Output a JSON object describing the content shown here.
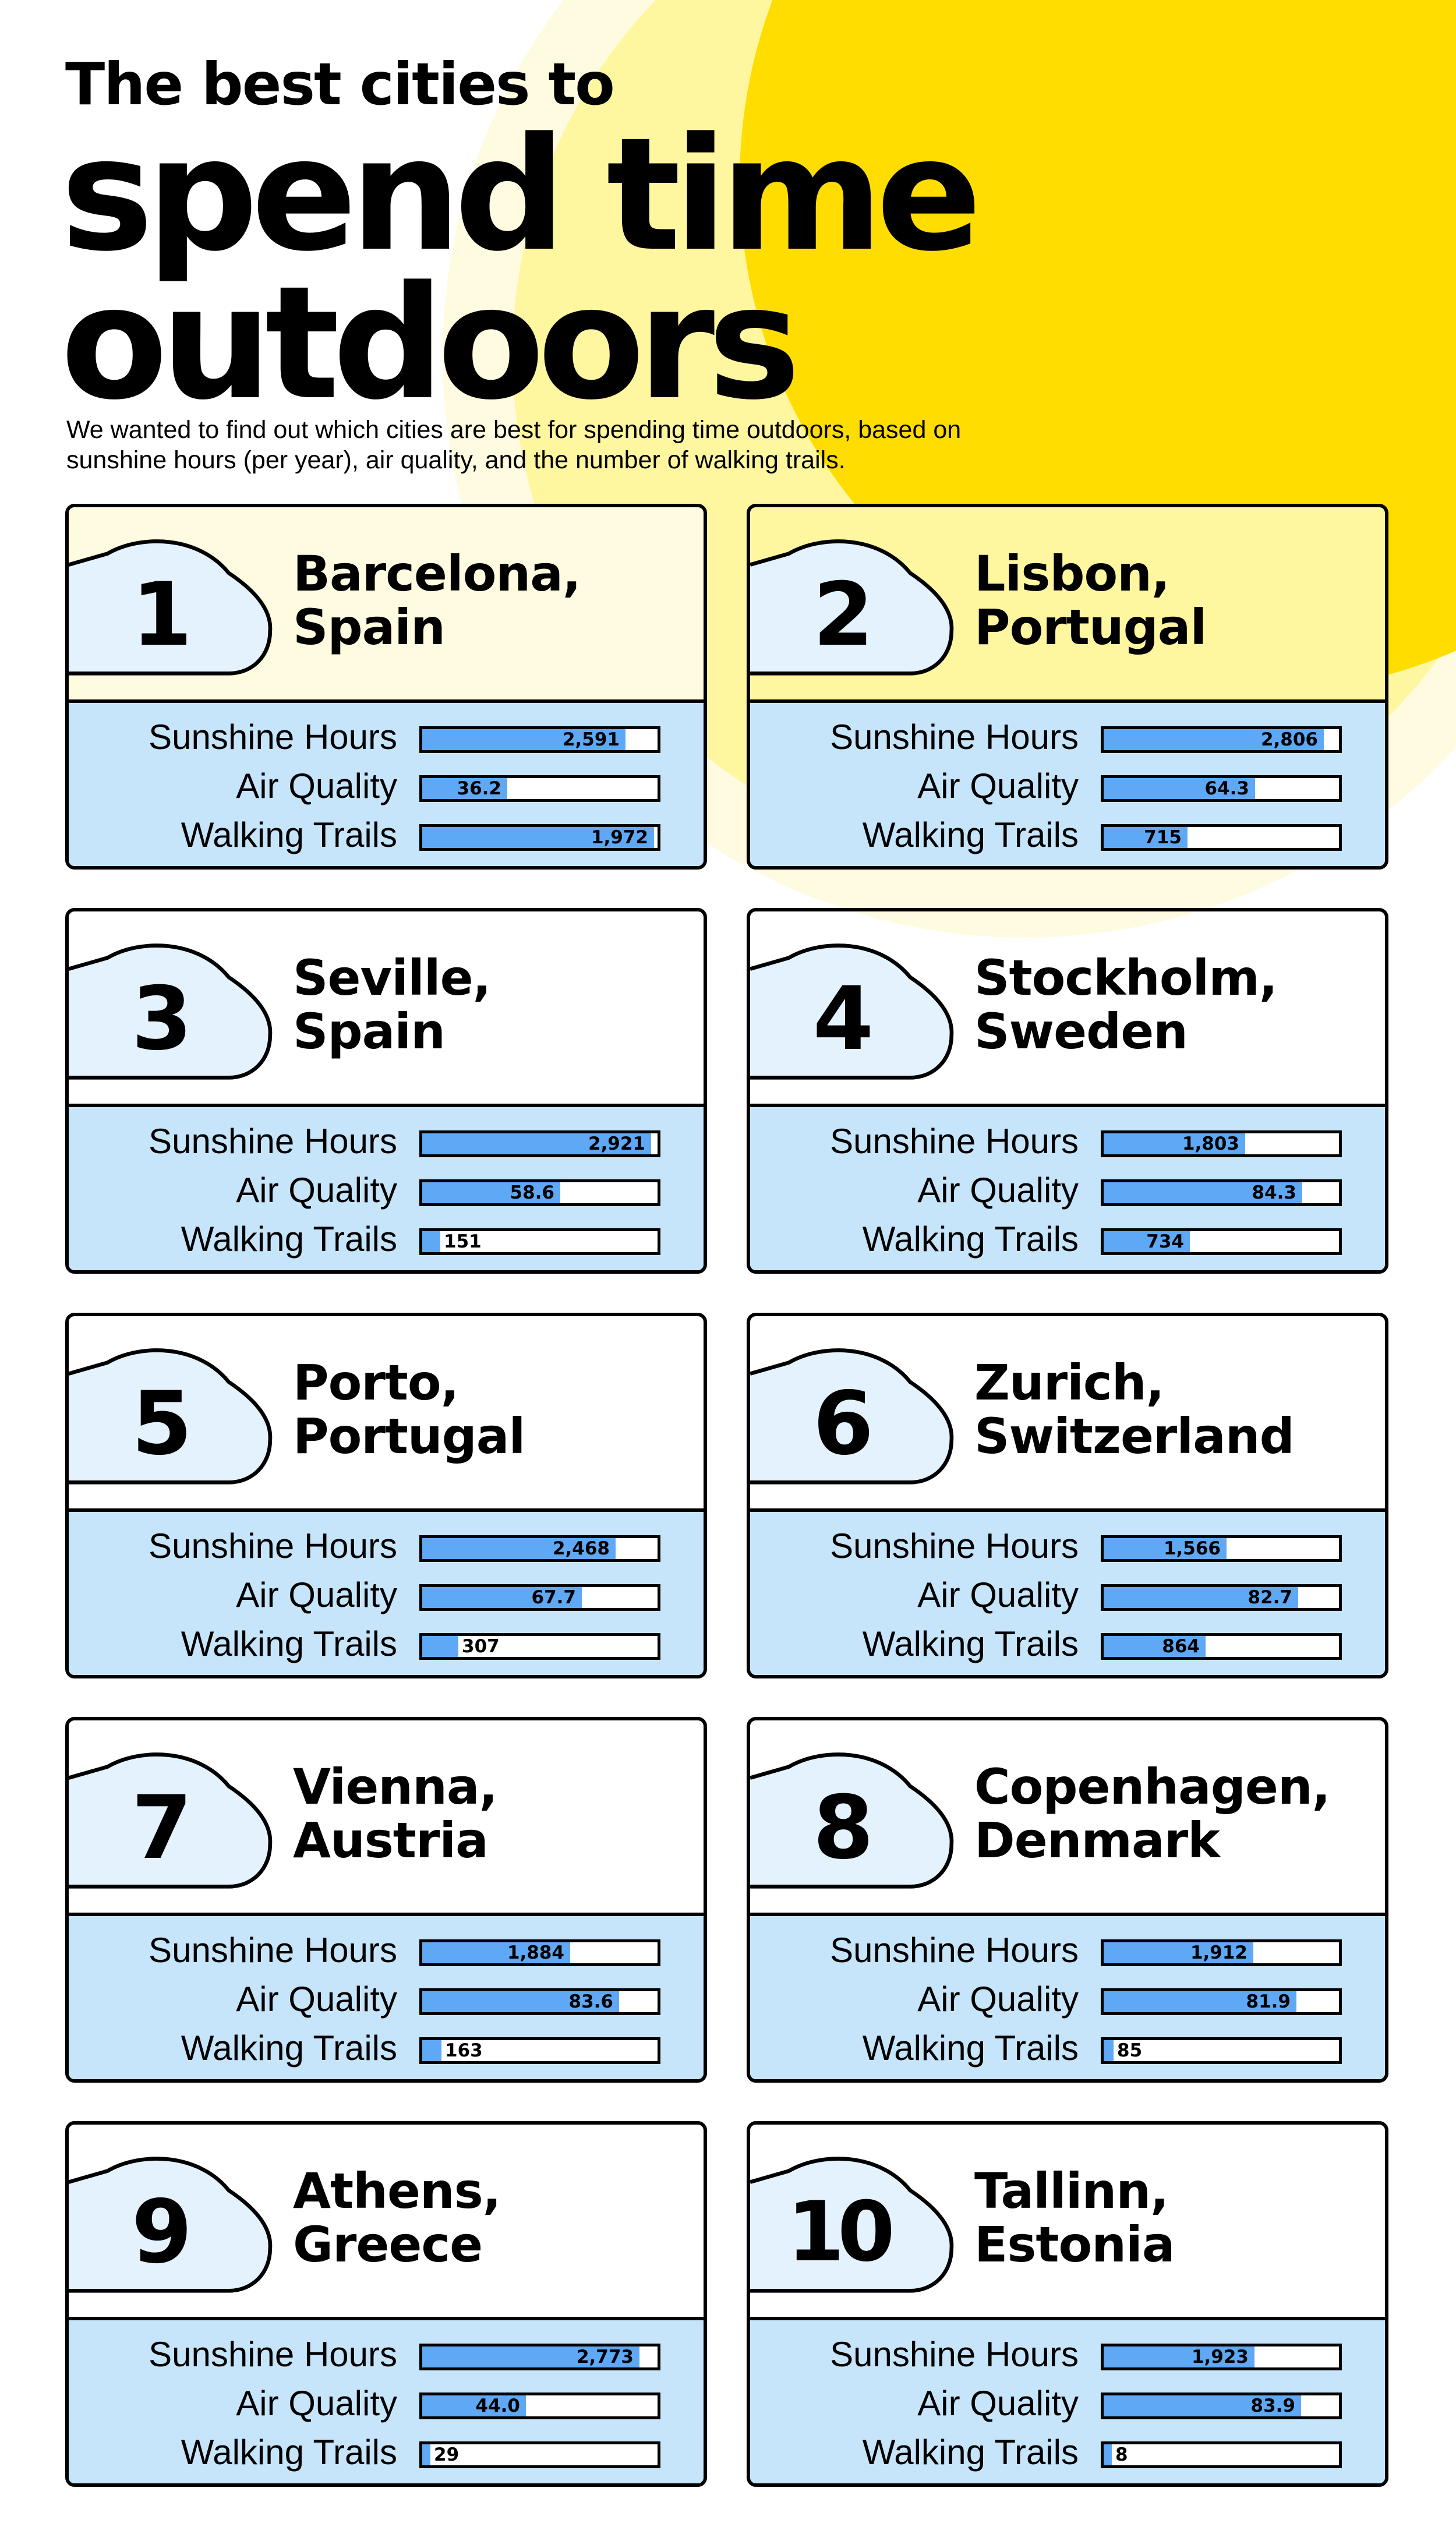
{
  "header": {
    "title_line1": "The best cities to",
    "title_line2": "spend time",
    "title_line3": "outdoors",
    "subtitle": "We wanted to find out which cities are best for spending time outdoors, based on sunshine hours (per year), air quality, and the number of walking trails."
  },
  "colors": {
    "sun_yellow": "#ffdd00",
    "sun_glow": "#fff6a0",
    "sun_halo": "#fffbe0",
    "panel_blue": "#c6e5fb",
    "bar_blue": "#5ea8f5",
    "cloud_fill": "#e3f2fd",
    "outline": "#000000"
  },
  "chart_data": {
    "type": "bar",
    "metrics": [
      "Sunshine Hours",
      "Air Quality",
      "Walking Trails"
    ],
    "cities": [
      {
        "rank": "1",
        "name_line1": "Barcelona,",
        "name_line2": "Spain",
        "sunshine": 2591,
        "sunshine_label": "2,591",
        "air": 36.2,
        "air_label": "36.2",
        "trails": 1972,
        "trails_label": "1,972"
      },
      {
        "rank": "2",
        "name_line1": "Lisbon,",
        "name_line2": "Portugal",
        "sunshine": 2806,
        "sunshine_label": "2,806",
        "air": 64.3,
        "air_label": "64.3",
        "trails": 715,
        "trails_label": "715"
      },
      {
        "rank": "3",
        "name_line1": "Seville,",
        "name_line2": "Spain",
        "sunshine": 2921,
        "sunshine_label": "2,921",
        "air": 58.6,
        "air_label": "58.6",
        "trails": 151,
        "trails_label": "151"
      },
      {
        "rank": "4",
        "name_line1": "Stockholm,",
        "name_line2": "Sweden",
        "sunshine": 1803,
        "sunshine_label": "1,803",
        "air": 84.3,
        "air_label": "84.3",
        "trails": 734,
        "trails_label": "734"
      },
      {
        "rank": "5",
        "name_line1": "Porto,",
        "name_line2": "Portugal",
        "sunshine": 2468,
        "sunshine_label": "2,468",
        "air": 67.7,
        "air_label": "67.7",
        "trails": 307,
        "trails_label": "307"
      },
      {
        "rank": "6",
        "name_line1": "Zurich,",
        "name_line2": "Switzerland",
        "sunshine": 1566,
        "sunshine_label": "1,566",
        "air": 82.7,
        "air_label": "82.7",
        "trails": 864,
        "trails_label": "864"
      },
      {
        "rank": "7",
        "name_line1": "Vienna,",
        "name_line2": "Austria",
        "sunshine": 1884,
        "sunshine_label": "1,884",
        "air": 83.6,
        "air_label": "83.6",
        "trails": 163,
        "trails_label": "163"
      },
      {
        "rank": "8",
        "name_line1": "Copenhagen,",
        "name_line2": "Denmark",
        "sunshine": 1912,
        "sunshine_label": "1,912",
        "air": 81.9,
        "air_label": "81.9",
        "trails": 85,
        "trails_label": "85"
      },
      {
        "rank": "9",
        "name_line1": "Athens,",
        "name_line2": "Greece",
        "sunshine": 2773,
        "sunshine_label": "2,773",
        "air": 44.0,
        "air_label": "44.0",
        "trails": 29,
        "trails_label": "29"
      },
      {
        "rank": "10",
        "name_line1": "Tallinn,",
        "name_line2": "Estonia",
        "sunshine": 1923,
        "sunshine_label": "1,923",
        "air": 83.9,
        "air_label": "83.9",
        "trails": 8,
        "trails_label": "8"
      }
    ],
    "scale_max": {
      "sunshine": 3000,
      "air": 100,
      "trails": 2000
    }
  }
}
